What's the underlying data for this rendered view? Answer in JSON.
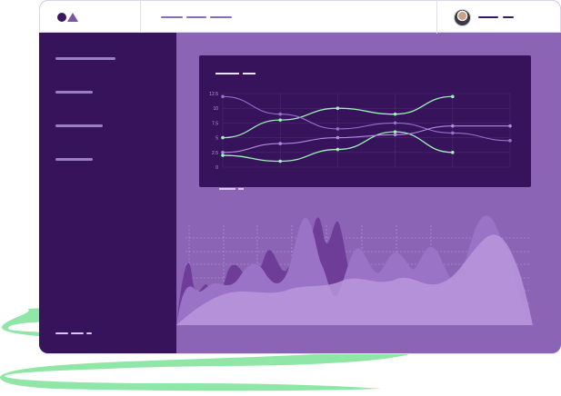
{
  "header": {
    "nav_items": [
      "",
      "",
      ""
    ],
    "user": {
      "avatar": "user-avatar"
    }
  },
  "sidebar": {
    "items": [
      "",
      "",
      "",
      ""
    ],
    "footer": ""
  },
  "panel": {
    "title": ""
  },
  "chart_data": [
    {
      "type": "line",
      "title": "",
      "xlabel": "",
      "ylabel": "",
      "yticks": [
        "12.5",
        "10",
        "7.5",
        "5",
        "2.5",
        "0"
      ],
      "ylim": [
        0,
        12.5
      ],
      "grid": true,
      "x": [
        0,
        1,
        2,
        3,
        4,
        5
      ],
      "series": [
        {
          "values": [
            5,
            8,
            10,
            9,
            12,
            null
          ],
          "color": "#9ef2b8"
        },
        {
          "values": [
            2,
            1,
            3,
            6,
            2.5,
            null
          ],
          "color": "#9ef2b8"
        },
        {
          "values": [
            12,
            9,
            6.5,
            7.5,
            5.8,
            4.5
          ],
          "color": "#9a6fd0"
        },
        {
          "values": [
            2.5,
            4,
            5,
            5.5,
            7,
            7
          ],
          "color": "#b48ae0"
        }
      ]
    }
  ],
  "colors": {
    "accent": "#9ef2b8",
    "sidebar": "#36135b",
    "background": "#8c64b6",
    "brush": "#8fe6a6"
  }
}
